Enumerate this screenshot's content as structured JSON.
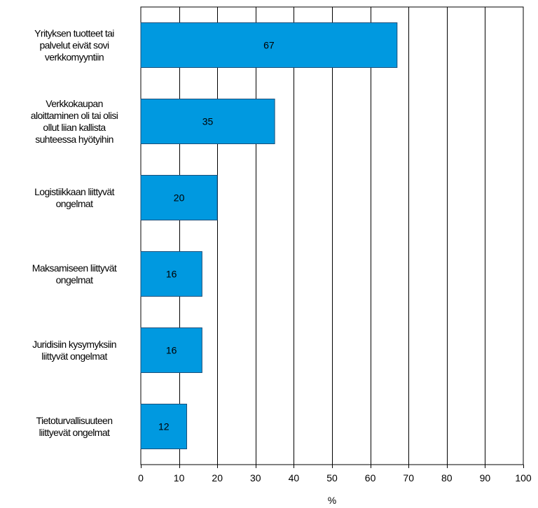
{
  "chart_data": {
    "type": "bar",
    "orientation": "horizontal",
    "categories": [
      [
        "Yrityksen tuotteet tai",
        "palvelut eivät sovi",
        "verkkomyyntiin"
      ],
      [
        "Verkkokaupan",
        "aloittaminen oli tai olisi",
        "ollut liian kallista",
        "suhteessa hyötyihin"
      ],
      [
        "Logistiikkaan liittyvät",
        "ongelmat"
      ],
      [
        "Maksamiseen liittyvät",
        "ongelmat"
      ],
      [
        "Juridisiin kysymyksiin",
        "liittyvät ongelmat"
      ],
      [
        "Tietoturvallisuuteen",
        "liittyevät ongelmat"
      ]
    ],
    "values": [
      67,
      35,
      20,
      16,
      16,
      12
    ],
    "data_labels": [
      "67",
      "35",
      "20",
      "16",
      "16",
      "12"
    ],
    "xlim": [
      0,
      100
    ],
    "xticks": [
      0,
      10,
      20,
      30,
      40,
      50,
      60,
      70,
      80,
      90,
      100
    ],
    "xlabel": "%",
    "ylabel": "",
    "title": "",
    "grid": true,
    "colors": {
      "bar": "#0099e0",
      "bar_stroke": "#1a4f7a",
      "grid": "#000000"
    }
  }
}
